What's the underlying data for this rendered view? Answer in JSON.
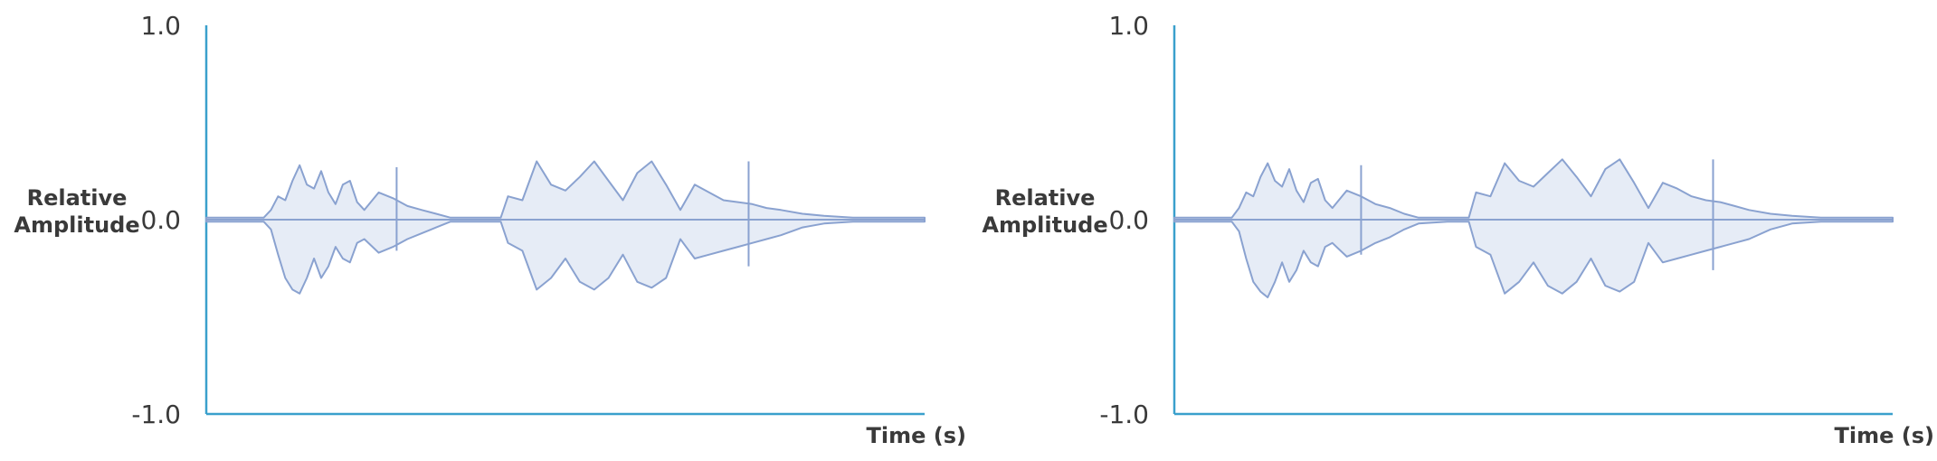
{
  "chart_data": [
    {
      "type": "area",
      "title": "",
      "xlabel": "Time (s)",
      "ylabel_lines": [
        "Relative",
        "Amplitude"
      ],
      "ylim": [
        -1.0,
        1.0
      ],
      "yticks": [
        "1.0",
        "0.0",
        "-1.0"
      ],
      "grid": false,
      "envelope": {
        "x": [
          0.0,
          0.08,
          0.09,
          0.1,
          0.11,
          0.12,
          0.13,
          0.14,
          0.15,
          0.16,
          0.17,
          0.18,
          0.19,
          0.2,
          0.21,
          0.22,
          0.24,
          0.26,
          0.28,
          0.3,
          0.32,
          0.34,
          0.38,
          0.41,
          0.42,
          0.44,
          0.46,
          0.48,
          0.5,
          0.52,
          0.54,
          0.56,
          0.58,
          0.6,
          0.62,
          0.64,
          0.66,
          0.68,
          0.7,
          0.72,
          0.74,
          0.76,
          0.78,
          0.8,
          0.83,
          0.86,
          0.9,
          0.95,
          1.0
        ],
        "upper": [
          0.01,
          0.01,
          0.05,
          0.12,
          0.1,
          0.2,
          0.28,
          0.18,
          0.16,
          0.25,
          0.14,
          0.08,
          0.18,
          0.2,
          0.09,
          0.05,
          0.14,
          0.11,
          0.07,
          0.05,
          0.03,
          0.01,
          0.01,
          0.01,
          0.12,
          0.1,
          0.3,
          0.18,
          0.15,
          0.22,
          0.3,
          0.2,
          0.1,
          0.24,
          0.3,
          0.18,
          0.05,
          0.18,
          0.14,
          0.1,
          0.09,
          0.08,
          0.06,
          0.05,
          0.03,
          0.02,
          0.01,
          0.01,
          0.01
        ],
        "lower": [
          -0.01,
          -0.01,
          -0.05,
          -0.18,
          -0.3,
          -0.36,
          -0.38,
          -0.3,
          -0.2,
          -0.3,
          -0.24,
          -0.14,
          -0.2,
          -0.22,
          -0.12,
          -0.1,
          -0.17,
          -0.14,
          -0.1,
          -0.07,
          -0.04,
          -0.01,
          -0.01,
          -0.01,
          -0.12,
          -0.16,
          -0.36,
          -0.3,
          -0.2,
          -0.32,
          -0.36,
          -0.3,
          -0.18,
          -0.32,
          -0.35,
          -0.3,
          -0.1,
          -0.2,
          -0.18,
          -0.16,
          -0.14,
          -0.12,
          -0.1,
          -0.08,
          -0.04,
          -0.02,
          -0.01,
          -0.01,
          -0.01
        ]
      },
      "spikes": [
        {
          "x": 0.265,
          "top": 0.27,
          "bottom": -0.16
        },
        {
          "x": 0.755,
          "top": 0.3,
          "bottom": -0.24
        }
      ]
    },
    {
      "type": "area",
      "title": "",
      "xlabel": "Time (s)",
      "ylabel_lines": [
        "Relative",
        "Amplitude"
      ],
      "ylim": [
        -1.0,
        1.0
      ],
      "yticks": [
        "1.0",
        "0.0",
        "-1.0"
      ],
      "grid": false,
      "envelope": {
        "x": [
          0.0,
          0.08,
          0.09,
          0.1,
          0.11,
          0.12,
          0.13,
          0.14,
          0.15,
          0.16,
          0.17,
          0.18,
          0.19,
          0.2,
          0.21,
          0.22,
          0.24,
          0.26,
          0.28,
          0.3,
          0.32,
          0.34,
          0.38,
          0.41,
          0.42,
          0.44,
          0.46,
          0.48,
          0.5,
          0.52,
          0.54,
          0.56,
          0.58,
          0.6,
          0.62,
          0.64,
          0.66,
          0.68,
          0.7,
          0.72,
          0.74,
          0.76,
          0.78,
          0.8,
          0.83,
          0.86,
          0.9,
          0.95,
          1.0
        ],
        "upper": [
          0.01,
          0.01,
          0.06,
          0.14,
          0.12,
          0.22,
          0.29,
          0.2,
          0.17,
          0.26,
          0.15,
          0.09,
          0.19,
          0.21,
          0.1,
          0.06,
          0.15,
          0.12,
          0.08,
          0.06,
          0.03,
          0.01,
          0.01,
          0.01,
          0.14,
          0.12,
          0.29,
          0.2,
          0.17,
          0.24,
          0.31,
          0.22,
          0.12,
          0.26,
          0.31,
          0.19,
          0.06,
          0.19,
          0.16,
          0.12,
          0.1,
          0.09,
          0.07,
          0.05,
          0.03,
          0.02,
          0.01,
          0.01,
          0.01
        ],
        "lower": [
          -0.01,
          -0.01,
          -0.06,
          -0.2,
          -0.32,
          -0.37,
          -0.4,
          -0.32,
          -0.22,
          -0.32,
          -0.26,
          -0.16,
          -0.22,
          -0.24,
          -0.14,
          -0.12,
          -0.19,
          -0.16,
          -0.12,
          -0.09,
          -0.05,
          -0.02,
          -0.01,
          -0.01,
          -0.14,
          -0.18,
          -0.38,
          -0.32,
          -0.22,
          -0.34,
          -0.38,
          -0.32,
          -0.2,
          -0.34,
          -0.37,
          -0.32,
          -0.12,
          -0.22,
          -0.2,
          -0.18,
          -0.16,
          -0.14,
          -0.12,
          -0.1,
          -0.05,
          -0.02,
          -0.01,
          -0.01,
          -0.01
        ]
      },
      "spikes": [
        {
          "x": 0.26,
          "top": 0.28,
          "bottom": -0.18
        },
        {
          "x": 0.75,
          "top": 0.31,
          "bottom": -0.26
        }
      ]
    }
  ]
}
